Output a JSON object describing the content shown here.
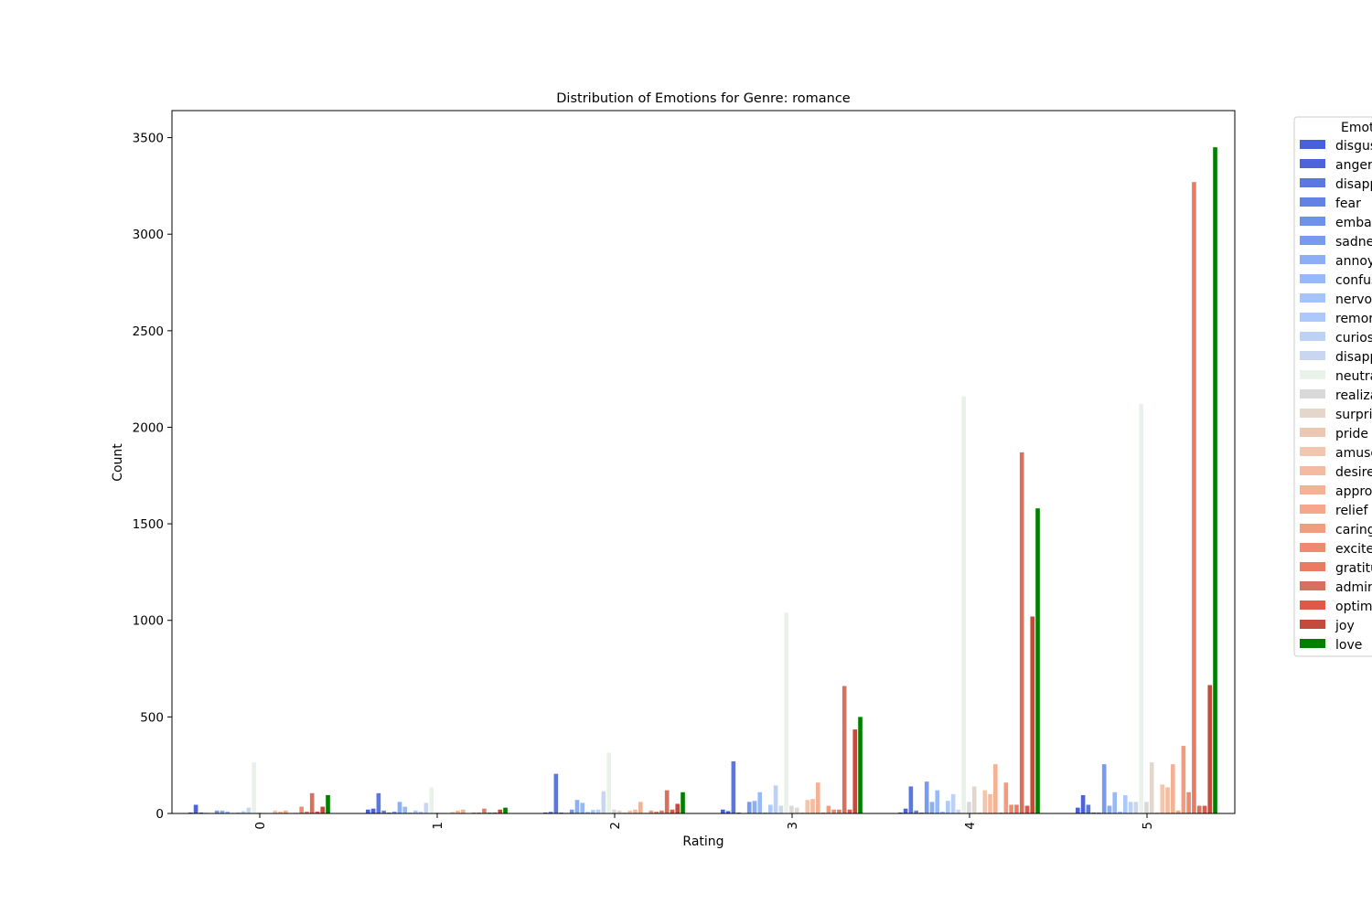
{
  "chart_data": {
    "type": "bar",
    "title": "Distribution of Emotions for Genre: romance",
    "xlabel": "Rating",
    "ylabel": "Count",
    "ylim": [
      0,
      3640
    ],
    "yticks": [
      0,
      500,
      1000,
      1500,
      2000,
      2500,
      3000,
      3500
    ],
    "categories": [
      "0",
      "1",
      "2",
      "3",
      "4",
      "5"
    ],
    "legend": {
      "title": "Emot",
      "placement": "right (cut off)"
    },
    "grid": false,
    "series": [
      {
        "name": "disgus",
        "color": "#4860d8",
        "values": [
          5,
          20,
          5,
          20,
          5,
          30
        ]
      },
      {
        "name": "anger",
        "color": "#4c63d9",
        "values": [
          45,
          25,
          8,
          12,
          25,
          95
        ]
      },
      {
        "name": "disapp",
        "color": "#5a77e0",
        "values": [
          5,
          105,
          205,
          270,
          140,
          45
        ]
      },
      {
        "name": "fear",
        "color": "#6283e4",
        "values": [
          3,
          15,
          5,
          5,
          15,
          5
        ]
      },
      {
        "name": "embar",
        "color": "#6d92ec",
        "values": [
          2,
          5,
          3,
          2,
          5,
          5
        ]
      },
      {
        "name": "sadne",
        "color": "#799bef",
        "values": [
          15,
          10,
          20,
          60,
          165,
          255
        ]
      },
      {
        "name": "annoy",
        "color": "#8caef7",
        "values": [
          15,
          60,
          70,
          65,
          60,
          40
        ]
      },
      {
        "name": "confus",
        "color": "#97b9fa",
        "values": [
          10,
          35,
          55,
          110,
          120,
          110
        ]
      },
      {
        "name": "nervou",
        "color": "#a5c4fc",
        "values": [
          3,
          5,
          8,
          5,
          10,
          10
        ]
      },
      {
        "name": "remor",
        "color": "#adc9fc",
        "values": [
          5,
          15,
          18,
          45,
          65,
          95
        ]
      },
      {
        "name": "curios",
        "color": "#bdd1f4",
        "values": [
          12,
          10,
          20,
          145,
          100,
          60
        ]
      },
      {
        "name": "disapp",
        "color": "#c8d6f0",
        "values": [
          30,
          55,
          115,
          40,
          20,
          60
        ]
      },
      {
        "name": "neutra",
        "color": "#e8f2e8",
        "values": [
          265,
          135,
          315,
          1040,
          2160,
          2120
        ]
      },
      {
        "name": "realiza",
        "color": "#d9d9d9",
        "values": [
          5,
          5,
          20,
          40,
          60,
          60
        ]
      },
      {
        "name": "surpri",
        "color": "#e5d6cc",
        "values": [
          3,
          3,
          15,
          30,
          140,
          265
        ]
      },
      {
        "name": "pride",
        "color": "#ecc8b4",
        "values": [
          2,
          2,
          5,
          5,
          5,
          5
        ]
      },
      {
        "name": "amuse",
        "color": "#f2c6ae",
        "values": [
          15,
          8,
          15,
          70,
          120,
          150
        ]
      },
      {
        "name": "desire",
        "color": "#f5bba0",
        "values": [
          10,
          15,
          20,
          75,
          100,
          135
        ]
      },
      {
        "name": "appro",
        "color": "#f2b293",
        "values": [
          15,
          20,
          60,
          160,
          255,
          255
        ]
      },
      {
        "name": "relief",
        "color": "#f5a68c",
        "values": [
          2,
          2,
          3,
          5,
          5,
          15
        ]
      },
      {
        "name": "caring",
        "color": "#f29c7f",
        "values": [
          3,
          5,
          15,
          40,
          160,
          350
        ]
      },
      {
        "name": "excite",
        "color": "#ee8a6e",
        "values": [
          35,
          5,
          10,
          20,
          45,
          110
        ]
      },
      {
        "name": "gratitu",
        "color": "#ea7b62",
        "values": [
          10,
          25,
          15,
          20,
          45,
          3270
        ]
      },
      {
        "name": "admir",
        "color": "#d87060",
        "values": [
          105,
          5,
          120,
          660,
          1870,
          40
        ]
      },
      {
        "name": "optim",
        "color": "#dd5a48",
        "values": [
          10,
          5,
          20,
          20,
          40,
          40
        ]
      },
      {
        "name": "joy",
        "color": "#c44a3e",
        "values": [
          35,
          20,
          50,
          435,
          1020,
          665
        ]
      },
      {
        "name": "love",
        "color": "#008000",
        "values": [
          95,
          30,
          110,
          500,
          1580,
          3450
        ]
      }
    ]
  }
}
